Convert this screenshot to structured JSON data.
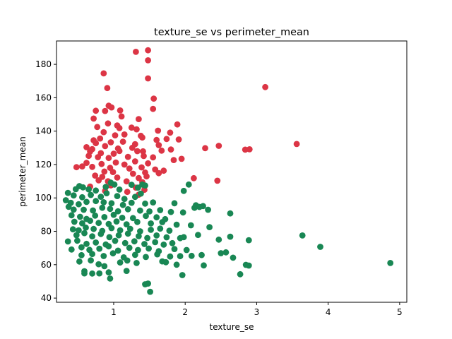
{
  "chart_data": {
    "type": "scatter",
    "title": "texture_se vs perimeter_mean",
    "xlabel": "texture_se",
    "ylabel": "perimeter_mean",
    "xlim": [
      0.2,
      5.1
    ],
    "ylim": [
      37.5,
      194
    ],
    "x_ticks": [
      1,
      2,
      3,
      4,
      5
    ],
    "y_ticks": [
      40,
      60,
      80,
      100,
      120,
      140,
      160,
      180
    ],
    "grid": false,
    "legend": "none",
    "series": [
      {
        "color": "#dc3545",
        "points": [
          [
            1.31,
            187.5
          ],
          [
            1.48,
            188.4
          ],
          [
            1.48,
            182.4
          ],
          [
            0.86,
            174.6
          ],
          [
            1.48,
            171.6
          ],
          [
            3.12,
            166.4
          ],
          [
            0.91,
            165.8
          ],
          [
            1.56,
            159.5
          ],
          [
            0.88,
            152.1
          ],
          [
            0.93,
            155.2
          ],
          [
            0.97,
            154.2
          ],
          [
            1.55,
            153.3
          ],
          [
            0.75,
            152.2
          ],
          [
            0.72,
            147.5
          ],
          [
            1.09,
            152.4
          ],
          [
            1.11,
            148.8
          ],
          [
            1.35,
            147.2
          ],
          [
            0.92,
            144.6
          ],
          [
            0.77,
            142.5
          ],
          [
            1.05,
            143.4
          ],
          [
            1.08,
            141.8
          ],
          [
            1.25,
            142.1
          ],
          [
            1.32,
            141.1
          ],
          [
            1.89,
            144.0
          ],
          [
            0.86,
            139.4
          ],
          [
            1.62,
            140.3
          ],
          [
            1.79,
            139.1
          ],
          [
            1.02,
            137.5
          ],
          [
            1.15,
            138.0
          ],
          [
            1.38,
            137.2
          ],
          [
            1.4,
            136.2
          ],
          [
            0.81,
            135.6
          ],
          [
            0.72,
            134.5
          ],
          [
            1.6,
            134.7
          ],
          [
            1.74,
            135.3
          ],
          [
            1.91,
            135.0
          ],
          [
            0.75,
            132.8
          ],
          [
            0.96,
            133.3
          ],
          [
            1.13,
            133.7
          ],
          [
            1.3,
            132.2
          ],
          [
            1.63,
            131.6
          ],
          [
            0.88,
            131.0
          ],
          [
            0.62,
            130.4
          ],
          [
            0.7,
            129.2
          ],
          [
            1.06,
            129.6
          ],
          [
            1.26,
            130.0
          ],
          [
            2.28,
            129.8
          ],
          [
            2.47,
            131.2
          ],
          [
            2.84,
            128.9
          ],
          [
            2.9,
            129.1
          ],
          [
            3.56,
            132.3
          ],
          [
            0.67,
            127.8
          ],
          [
            0.82,
            126.8
          ],
          [
            1.0,
            126.5
          ],
          [
            1.08,
            128.1
          ],
          [
            1.33,
            128.0
          ],
          [
            1.41,
            127.9
          ],
          [
            1.67,
            128.3
          ],
          [
            1.8,
            129.0
          ],
          [
            0.65,
            125.2
          ],
          [
            0.78,
            124.4
          ],
          [
            0.93,
            123.9
          ],
          [
            1.2,
            124.6
          ],
          [
            1.42,
            125.1
          ],
          [
            1.55,
            124.3
          ],
          [
            1.84,
            122.7
          ],
          [
            1.95,
            123.4
          ],
          [
            0.62,
            121.0
          ],
          [
            0.83,
            120.3
          ],
          [
            1.03,
            121.2
          ],
          [
            1.15,
            120.0
          ],
          [
            1.3,
            121.9
          ],
          [
            1.48,
            120.7
          ],
          [
            0.7,
            118.6
          ],
          [
            0.48,
            118.4
          ],
          [
            0.56,
            118.9
          ],
          [
            0.95,
            118.0
          ],
          [
            1.22,
            117.6
          ],
          [
            1.39,
            118.3
          ],
          [
            1.58,
            117.0
          ],
          [
            1.7,
            116.3
          ],
          [
            0.87,
            115.8
          ],
          [
            0.99,
            115.5
          ],
          [
            1.27,
            114.5
          ],
          [
            1.44,
            115.2
          ],
          [
            1.63,
            114.8
          ],
          [
            0.74,
            113.4
          ],
          [
            0.84,
            112.6
          ],
          [
            1.05,
            112.2
          ],
          [
            1.35,
            111.9
          ],
          [
            1.46,
            112.9
          ],
          [
            2.12,
            111.8
          ],
          [
            0.79,
            110.5
          ],
          [
            0.92,
            110.0
          ],
          [
            1.18,
            109.9
          ],
          [
            1.4,
            109.4
          ],
          [
            2.45,
            110.3
          ],
          [
            0.67,
            106.8
          ],
          [
            0.96,
            107.5
          ],
          [
            1.31,
            106.2
          ],
          [
            1.43,
            104.9
          ],
          [
            1.19,
            103.6
          ],
          [
            0.88,
            104.2
          ],
          [
            1.35,
            101.9
          ]
        ]
      },
      {
        "color": "#198754",
        "points": [
          [
            0.36,
            103.0
          ],
          [
            0.47,
            105.2
          ],
          [
            0.52,
            107.1
          ],
          [
            0.57,
            106.3
          ],
          [
            0.65,
            105.1
          ],
          [
            0.75,
            104.4
          ],
          [
            0.89,
            106.6
          ],
          [
            0.96,
            109.1
          ],
          [
            1.01,
            108.0
          ],
          [
            1.08,
            105.0
          ],
          [
            1.25,
            107.9
          ],
          [
            1.34,
            106.2
          ],
          [
            1.4,
            108.0
          ],
          [
            1.44,
            107.4
          ],
          [
            1.98,
            104.2
          ],
          [
            2.05,
            108.0
          ],
          [
            0.44,
            101.5
          ],
          [
            0.56,
            100.4
          ],
          [
            0.68,
            101.8
          ],
          [
            0.82,
            100.7
          ],
          [
            0.9,
            102.8
          ],
          [
            1.05,
            101.1
          ],
          [
            1.15,
            99.4
          ],
          [
            1.3,
            100.6
          ],
          [
            1.38,
            102.6
          ],
          [
            0.33,
            98.6
          ],
          [
            0.4,
            97.1
          ],
          [
            0.51,
            96.2
          ],
          [
            0.62,
            97.6
          ],
          [
            0.75,
            98.1
          ],
          [
            0.86,
            97.4
          ],
          [
            0.97,
            96.8
          ],
          [
            1.13,
            95.8
          ],
          [
            1.25,
            97.1
          ],
          [
            1.44,
            96.6
          ],
          [
            1.55,
            97.3
          ],
          [
            1.85,
            96.8
          ],
          [
            2.15,
            95.6
          ],
          [
            2.2,
            94.6
          ],
          [
            2.25,
            95.1
          ],
          [
            2.32,
            92.9
          ],
          [
            0.37,
            94.7
          ],
          [
            0.44,
            93.0
          ],
          [
            0.58,
            92.9
          ],
          [
            0.71,
            92.5
          ],
          [
            0.84,
            94.1
          ],
          [
            0.95,
            93.4
          ],
          [
            1.06,
            92.0
          ],
          [
            1.2,
            93.2
          ],
          [
            1.37,
            92.4
          ],
          [
            1.5,
            91.9
          ],
          [
            1.65,
            92.7
          ],
          [
            1.8,
            91.6
          ],
          [
            1.97,
            91.3
          ],
          [
            2.13,
            94.1
          ],
          [
            2.63,
            90.7
          ],
          [
            0.41,
            89.6
          ],
          [
            0.53,
            88.7
          ],
          [
            0.62,
            87.4
          ],
          [
            0.74,
            89.4
          ],
          [
            0.87,
            88.5
          ],
          [
            1.0,
            89.9
          ],
          [
            1.12,
            88.1
          ],
          [
            1.27,
            87.9
          ],
          [
            1.45,
            89.2
          ],
          [
            1.6,
            88.4
          ],
          [
            1.72,
            87.3
          ],
          [
            0.45,
            85.7
          ],
          [
            0.56,
            84.8
          ],
          [
            0.67,
            86.3
          ],
          [
            0.79,
            85.0
          ],
          [
            0.93,
            84.4
          ],
          [
            1.04,
            85.9
          ],
          [
            1.18,
            84.2
          ],
          [
            1.33,
            85.6
          ],
          [
            1.52,
            84.7
          ],
          [
            1.68,
            85.5
          ],
          [
            1.88,
            84.0
          ],
          [
            2.08,
            83.6
          ],
          [
            2.34,
            82.5
          ],
          [
            0.43,
            81.2
          ],
          [
            0.51,
            80.6
          ],
          [
            0.61,
            82.2
          ],
          [
            0.72,
            81.4
          ],
          [
            0.84,
            80.2
          ],
          [
            0.97,
            81.9
          ],
          [
            1.09,
            80.6
          ],
          [
            1.23,
            81.5
          ],
          [
            1.37,
            80.0
          ],
          [
            1.52,
            80.9
          ],
          [
            1.65,
            81.6
          ],
          [
            1.78,
            80.4
          ],
          [
            0.48,
            77.7
          ],
          [
            0.59,
            78.9
          ],
          [
            0.7,
            77.0
          ],
          [
            0.82,
            78.4
          ],
          [
            0.94,
            76.5
          ],
          [
            1.07,
            77.6
          ],
          [
            1.2,
            78.6
          ],
          [
            1.35,
            77.1
          ],
          [
            1.47,
            76.0
          ],
          [
            1.6,
            77.5
          ],
          [
            1.74,
            76.4
          ],
          [
            1.93,
            75.9
          ],
          [
            1.98,
            76.5
          ],
          [
            2.18,
            77.8
          ],
          [
            2.47,
            75.0
          ],
          [
            2.63,
            76.8
          ],
          [
            2.89,
            74.7
          ],
          [
            3.64,
            77.5
          ],
          [
            0.36,
            73.9
          ],
          [
            0.49,
            74.4
          ],
          [
            0.62,
            72.5
          ],
          [
            0.75,
            73.3
          ],
          [
            0.89,
            72.1
          ],
          [
            1.02,
            74.3
          ],
          [
            1.16,
            73.0
          ],
          [
            1.29,
            74.0
          ],
          [
            1.43,
            72.4
          ],
          [
            1.58,
            73.5
          ],
          [
            1.7,
            72.0
          ],
          [
            1.82,
            72.9
          ],
          [
            0.41,
            69.1
          ],
          [
            0.55,
            70.4
          ],
          [
            0.66,
            68.9
          ],
          [
            0.8,
            69.6
          ],
          [
            0.93,
            71.0
          ],
          [
            1.06,
            68.4
          ],
          [
            1.22,
            70.1
          ],
          [
            1.34,
            68.8
          ],
          [
            1.49,
            69.7
          ],
          [
            1.63,
            68.1
          ],
          [
            1.85,
            69.4
          ],
          [
            2.02,
            68.8
          ],
          [
            2.5,
            66.9
          ],
          [
            2.57,
            67.4
          ],
          [
            2.67,
            64.2
          ],
          [
            3.89,
            70.7
          ],
          [
            0.55,
            65.7
          ],
          [
            0.7,
            66.4
          ],
          [
            0.86,
            65.2
          ],
          [
            0.99,
            66.8
          ],
          [
            1.14,
            64.4
          ],
          [
            1.3,
            65.9
          ],
          [
            1.45,
            64.6
          ],
          [
            1.61,
            66.2
          ],
          [
            1.79,
            64.9
          ],
          [
            1.93,
            65.1
          ],
          [
            2.09,
            65.3
          ],
          [
            2.23,
            65.8
          ],
          [
            0.52,
            61.9
          ],
          [
            0.68,
            62.6
          ],
          [
            0.79,
            60.3
          ],
          [
            0.87,
            59.1
          ],
          [
            1.09,
            61.3
          ],
          [
            1.19,
            62.5
          ],
          [
            1.32,
            61.0
          ],
          [
            1.68,
            62.0
          ],
          [
            1.73,
            61.5
          ],
          [
            1.88,
            60.0
          ],
          [
            2.26,
            59.6
          ],
          [
            2.85,
            59.9
          ],
          [
            2.89,
            59.5
          ],
          [
            4.87,
            61.0
          ],
          [
            0.59,
            56.1
          ],
          [
            0.59,
            54.8
          ],
          [
            0.7,
            54.7
          ],
          [
            0.8,
            54.8
          ],
          [
            0.93,
            55.4
          ],
          [
            1.18,
            56.3
          ],
          [
            1.96,
            53.8
          ],
          [
            2.77,
            54.3
          ],
          [
            0.95,
            51.7
          ],
          [
            1.44,
            48.3
          ],
          [
            1.48,
            48.7
          ],
          [
            1.51,
            43.8
          ]
        ]
      }
    ]
  }
}
